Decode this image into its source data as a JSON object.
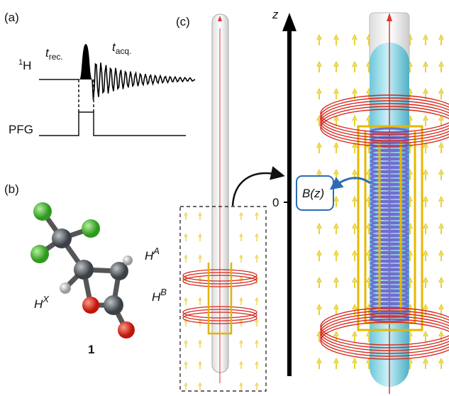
{
  "panels": {
    "a": {
      "label": "(a)",
      "nucleus": {
        "mass": "1",
        "symbol": "H"
      },
      "t_rec": {
        "symbol": "t",
        "subscript": "rec."
      },
      "t_acq": {
        "symbol": "t",
        "subscript": "acq."
      },
      "gradient": "PFG"
    },
    "b": {
      "label": "(b)",
      "hydrogens": {
        "a": {
          "symbol": "H",
          "superscript": "A"
        },
        "b": {
          "symbol": "H",
          "superscript": "B"
        },
        "x": {
          "symbol": "H",
          "superscript": "X"
        }
      },
      "compound": "1"
    },
    "c": {
      "label": "(c)",
      "axis": "z",
      "origin": "0",
      "field": "B(z)"
    }
  }
}
